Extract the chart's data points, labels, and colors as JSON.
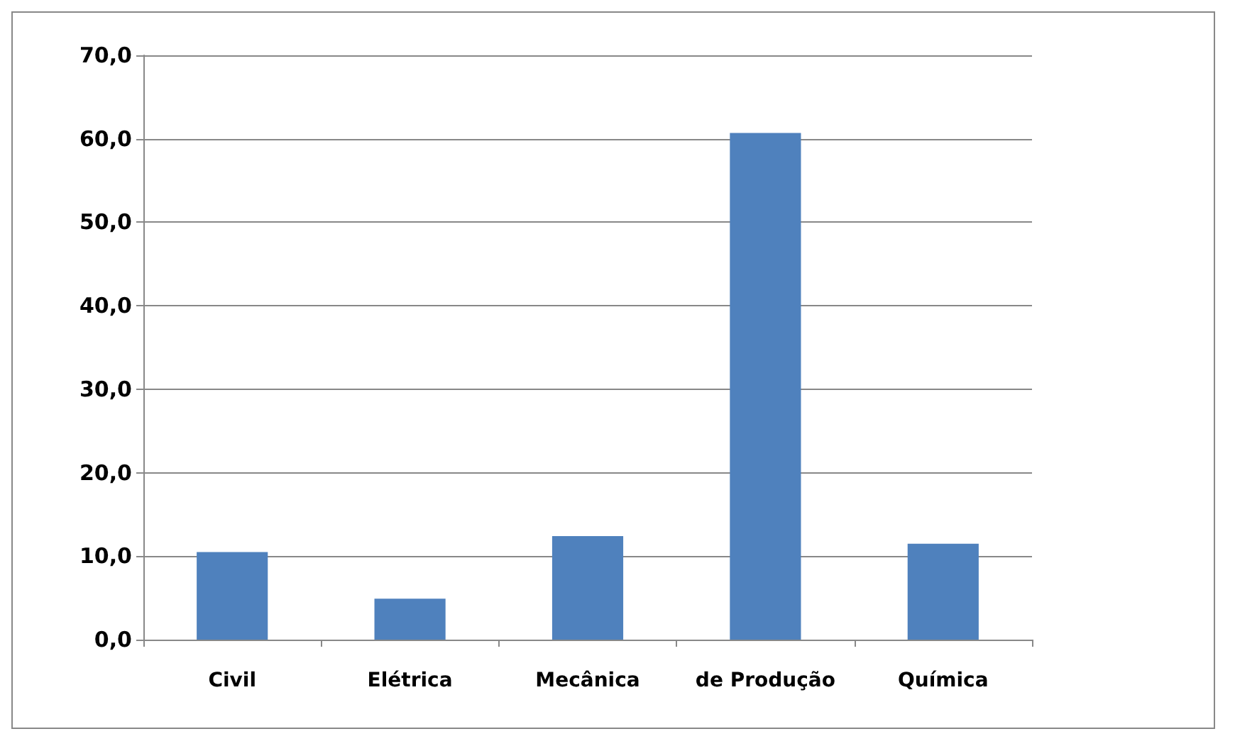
{
  "chart_data": {
    "type": "bar",
    "categories": [
      "Civil",
      "Elétrica",
      "Mecânica",
      "de Produção",
      "Química"
    ],
    "values": [
      10.5,
      4.9,
      12.4,
      60.7,
      11.5
    ],
    "color": "#4f81bd",
    "ylim": [
      0,
      70
    ],
    "yticks": [
      {
        "value": 0,
        "label": "0,0"
      },
      {
        "value": 10,
        "label": "10,0"
      },
      {
        "value": 20,
        "label": "20,0"
      },
      {
        "value": 30,
        "label": "30,0"
      },
      {
        "value": 40,
        "label": "40,0"
      },
      {
        "value": 50,
        "label": "50,0"
      },
      {
        "value": 60,
        "label": "60,0"
      },
      {
        "value": 70,
        "label": "70,0"
      }
    ],
    "grid": "y"
  }
}
